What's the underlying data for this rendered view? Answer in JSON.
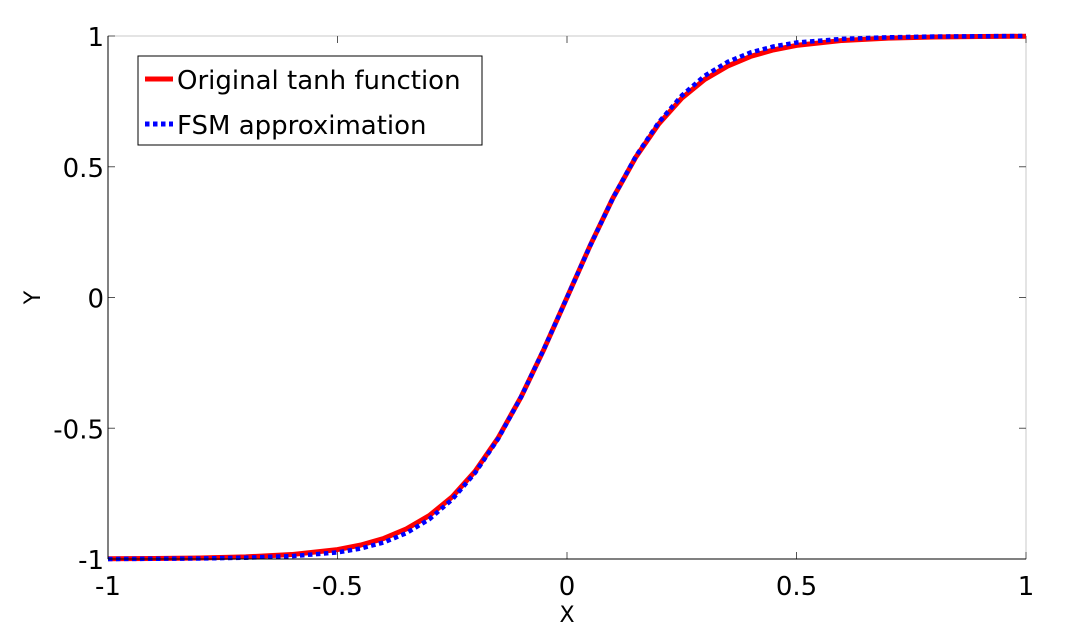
{
  "chart_data": {
    "type": "line",
    "title": "",
    "xlabel": "X",
    "ylabel": "Y",
    "xlim": [
      -1,
      1
    ],
    "ylim": [
      -1,
      1
    ],
    "xticks": [
      -1,
      -0.5,
      0,
      0.5,
      1
    ],
    "yticks": [
      -1,
      -0.5,
      0,
      0.5,
      1
    ],
    "xtick_labels": [
      "-1",
      "-0.5",
      "0",
      "0.5",
      "1"
    ],
    "ytick_labels": [
      "-1",
      "-0.5",
      "0",
      "0.5",
      "1"
    ],
    "grid": false,
    "legend_position": "top-left",
    "series": [
      {
        "name": "Original tanh function",
        "color": "#ff0000",
        "style": "solid",
        "x": [
          -1,
          -0.9,
          -0.8,
          -0.7,
          -0.6,
          -0.5,
          -0.45,
          -0.4,
          -0.35,
          -0.3,
          -0.25,
          -0.2,
          -0.15,
          -0.1,
          -0.05,
          0,
          0.05,
          0.1,
          0.15,
          0.2,
          0.25,
          0.3,
          0.35,
          0.4,
          0.45,
          0.5,
          0.6,
          0.7,
          0.8,
          0.9,
          1
        ],
        "y": [
          -0.999,
          -0.998,
          -0.996,
          -0.992,
          -0.983,
          -0.964,
          -0.947,
          -0.922,
          -0.885,
          -0.834,
          -0.762,
          -0.664,
          -0.537,
          -0.38,
          -0.197,
          0,
          0.197,
          0.38,
          0.537,
          0.664,
          0.762,
          0.834,
          0.885,
          0.922,
          0.947,
          0.964,
          0.983,
          0.992,
          0.996,
          0.998,
          0.999
        ]
      },
      {
        "name": "FSM approximation",
        "color": "#0000ff",
        "style": "dotted",
        "x": [
          -1,
          -0.9,
          -0.8,
          -0.7,
          -0.6,
          -0.5,
          -0.45,
          -0.4,
          -0.35,
          -0.3,
          -0.25,
          -0.2,
          -0.15,
          -0.1,
          -0.05,
          0,
          0.05,
          0.1,
          0.15,
          0.2,
          0.25,
          0.3,
          0.35,
          0.4,
          0.45,
          0.5,
          0.6,
          0.7,
          0.8,
          0.9,
          1
        ],
        "y": [
          -1.0,
          -0.999,
          -0.998,
          -0.995,
          -0.989,
          -0.975,
          -0.96,
          -0.937,
          -0.901,
          -0.848,
          -0.772,
          -0.67,
          -0.54,
          -0.38,
          -0.196,
          0,
          0.196,
          0.38,
          0.54,
          0.67,
          0.772,
          0.848,
          0.901,
          0.937,
          0.96,
          0.975,
          0.989,
          0.995,
          0.998,
          0.999,
          1.0
        ]
      }
    ]
  }
}
